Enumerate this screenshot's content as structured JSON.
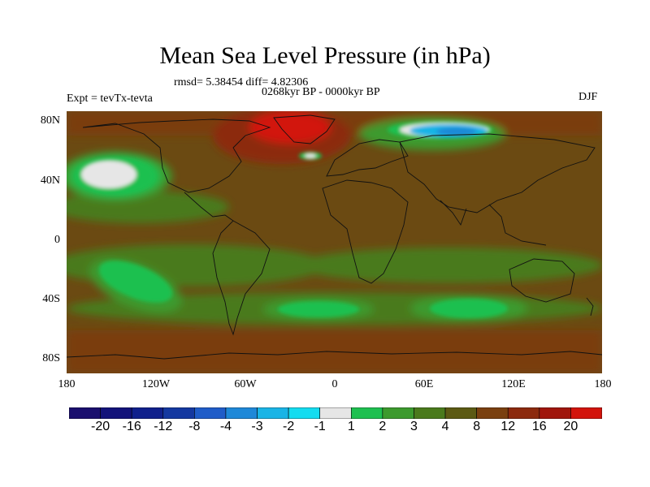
{
  "header": {
    "title": "Mean Sea Level Pressure (in hPa)",
    "stats": "rmsd= 5.38454 diff= 4.82306",
    "period": "0268kyr BP - 0000kyr BP",
    "experiment": "Expt = tevTx-tevta",
    "season": "DJF"
  },
  "axes": {
    "lat_ticks": [
      "80N",
      "40N",
      "0",
      "40S",
      "80S"
    ],
    "lon_ticks": [
      "180",
      "120W",
      "60W",
      "0",
      "60E",
      "120E",
      "180"
    ]
  },
  "colorbar": {
    "labels": [
      "-20",
      "-16",
      "-12",
      "-8",
      "-4",
      "-3",
      "-2",
      "-1",
      "1",
      "2",
      "3",
      "4",
      "8",
      "12",
      "16",
      "20"
    ],
    "colors": [
      "#1a0f6e",
      "#13137a",
      "#10208c",
      "#1438a0",
      "#1f5cc8",
      "#1e88d8",
      "#19b4e6",
      "#14dcf0",
      "#e6e6e6",
      "#1ec050",
      "#3c9a2e",
      "#4a7a1c",
      "#5c5a14",
      "#7a4010",
      "#8c2a0e",
      "#a0160c",
      "#d2140c"
    ]
  },
  "map_colors": {
    "background": "#6b4a12",
    "positive_high": "#d2140c",
    "positive_mid": "#8c2a0e",
    "positive_low": "#7a4010",
    "neutral_green_dark": "#4a7a1c",
    "neutral_green": "#3c9a2e",
    "negative_small": "#1ec050",
    "near_zero": "#e6e6e6",
    "negative": "#19b4e6",
    "negative_strong": "#1e88d8"
  }
}
